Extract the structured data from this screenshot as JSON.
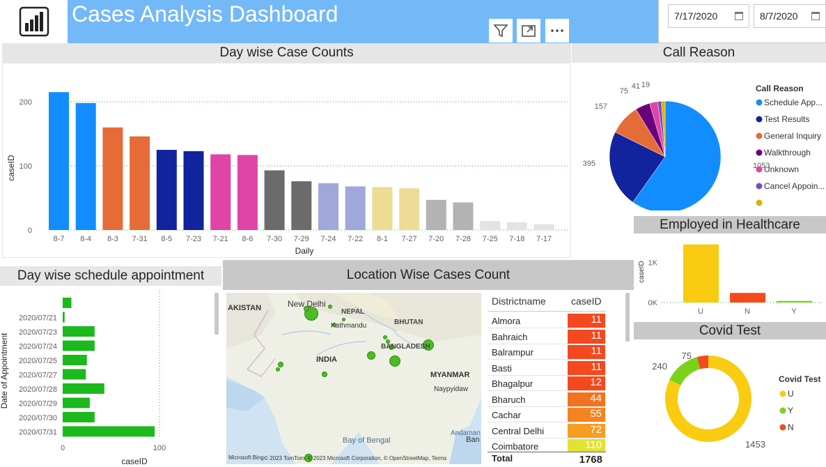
{
  "header": {
    "title": "Cases  Analysis Dashboard",
    "date_from": "7/17/2020",
    "date_to": "8/7/2020"
  },
  "toolbar_icons": [
    "filter-icon",
    "expand-icon",
    "more-icon"
  ],
  "panels": {
    "day_wise": "Day wise Case Counts",
    "call_reason": "Call Reason",
    "employed": "Employed in Healthcare",
    "day_sched": "Day wise schedule appointment",
    "location": "Location Wise Cases Count",
    "covid": "Covid Test"
  },
  "chart_data": [
    {
      "type": "bar",
      "xlabel": "Daily",
      "ylabel": "caseID",
      "ylim": [
        0,
        240
      ],
      "yticks": [
        "0",
        "100",
        "200"
      ],
      "categories": [
        "8-7",
        "8-4",
        "8-3",
        "7-31",
        "8-5",
        "7-23",
        "7-21",
        "8-6",
        "7-30",
        "7-29",
        "7-24",
        "7-22",
        "8-1",
        "7-27",
        "7-20",
        "7-28",
        "7-25",
        "7-18",
        "7-17"
      ],
      "values": [
        215,
        198,
        160,
        146,
        125,
        123,
        118,
        117,
        93,
        76,
        73,
        68,
        67,
        65,
        47,
        43,
        14,
        12,
        9
      ],
      "colors": [
        "#118dff",
        "#118dff",
        "#e66c37",
        "#e66c37",
        "#12239e",
        "#12239e",
        "#e044a7",
        "#e044a7",
        "#6b6b6b",
        "#6b6b6b",
        "#a0a7db",
        "#a0a7db",
        "#eedc95",
        "#eedc95",
        "#b3b3b3",
        "#b3b3b3",
        "#e3e3e3",
        "#e3e3e3",
        "#e3e3e3"
      ]
    },
    {
      "type": "pie",
      "legend_title": "Call Reason",
      "labels": [
        "Schedule App...",
        "Test Results",
        "General Inquiry",
        "Walkthrough",
        "Unknown",
        "Cancel Appoin...",
        ""
      ],
      "values": [
        1053,
        395,
        157,
        75,
        41,
        19,
        19
      ],
      "value_labels": [
        "1053",
        "395",
        "157",
        "75",
        "41",
        "19",
        ""
      ],
      "colors": [
        "#118dff",
        "#12239e",
        "#e66c37",
        "#6b007b",
        "#e044a7",
        "#744ec2",
        "#d9b300"
      ]
    },
    {
      "type": "bar",
      "ylabel": "caseID",
      "yticks": [
        "0K",
        "1K"
      ],
      "ylim": [
        0,
        1500
      ],
      "categories": [
        "U",
        "N",
        "Y"
      ],
      "values": [
        1453,
        240,
        40
      ],
      "colors": [
        "#f9cc12",
        "#f44a1e",
        "#7ad31a"
      ]
    },
    {
      "type": "bar",
      "orientation": "horizontal",
      "xlabel": "caseID",
      "ylabel": "Date of Appointment",
      "xlim": [
        0,
        110
      ],
      "xticks": [
        "0",
        "100"
      ],
      "categories": [
        "",
        "2020/07/21",
        "2020/07/23",
        "2020/07/24",
        "2020/07/25",
        "2020/07/27",
        "2020/07/28",
        "2020/07/29",
        "2020/07/30",
        "2020/07/31"
      ],
      "values": [
        9,
        2,
        33,
        33,
        25,
        24,
        43,
        28,
        33,
        95
      ],
      "color": "#1cb91c"
    },
    {
      "type": "pie",
      "legend_title": "Covid Test",
      "labels": [
        "U",
        "Y",
        "N"
      ],
      "values": [
        1453,
        240,
        75
      ],
      "value_labels": [
        "1453",
        "240",
        "75"
      ],
      "colors": [
        "#f9cc12",
        "#7ad31a",
        "#f44a1e"
      ]
    },
    {
      "type": "table",
      "columns": [
        "Districtname",
        "caseID"
      ],
      "rows": [
        [
          "Almora",
          "11",
          "#f4481e"
        ],
        [
          "Bahraich",
          "11",
          "#f4481e"
        ],
        [
          "Balrampur",
          "11",
          "#f4481e"
        ],
        [
          "Basti",
          "11",
          "#f4481e"
        ],
        [
          "Bhagalpur",
          "12",
          "#f4491e"
        ],
        [
          "Bharuch",
          "44",
          "#f2731f"
        ],
        [
          "Cachar",
          "55",
          "#f3851f"
        ],
        [
          "Central Delhi",
          "72",
          "#f59e21"
        ],
        [
          "Coimbatore",
          "110",
          "#e2e232"
        ]
      ],
      "total_label": "Total",
      "total": "1768"
    }
  ],
  "map": {
    "labels": [
      "AKISTAN",
      "New Delhi",
      "NEPAL",
      "Kathmandu",
      "BHUTAN",
      "BANGLADESH",
      "INDIA",
      "MYANMAR",
      "Naypyidaw",
      "Bay of Bengal",
      "Andaman",
      "Ban"
    ],
    "attribution": "© 2023 TomTom, © 2023 Microsoft Corporation, © OpenStreetMap, Terms",
    "brand": "Microsoft Bing"
  }
}
